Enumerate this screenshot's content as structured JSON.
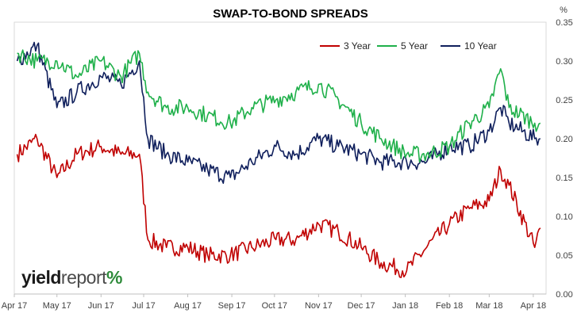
{
  "chart_data": {
    "type": "line",
    "title": "SWAP-TO-BOND SPREADS",
    "y_unit": "%",
    "ylim": [
      0,
      0.35
    ],
    "y_ticks": [
      "0.00",
      "0.05",
      "0.10",
      "0.15",
      "0.20",
      "0.25",
      "0.30",
      "0.35"
    ],
    "x_ticks": [
      "Apr 17",
      "May 17",
      "Jun 17",
      "Jul 17",
      "Aug 17",
      "Sep 17",
      "Oct 17",
      "Nov 17",
      "Dec 17",
      "Jan 18",
      "Feb 18",
      "Mar 18",
      "Apr 18"
    ],
    "legend_position": "top-right",
    "x": [
      "2017-04-03",
      "2017-04-17",
      "2017-05-01",
      "2017-05-15",
      "2017-06-01",
      "2017-06-15",
      "2017-06-28",
      "2017-07-04",
      "2017-07-17",
      "2017-08-01",
      "2017-08-15",
      "2017-08-31",
      "2017-09-15",
      "2017-10-02",
      "2017-10-16",
      "2017-11-01",
      "2017-11-15",
      "2017-12-01",
      "2017-12-15",
      "2018-01-02",
      "2018-01-16",
      "2018-02-01",
      "2018-02-15",
      "2018-03-01",
      "2018-03-09",
      "2018-03-15",
      "2018-04-02",
      "2018-04-06"
    ],
    "series": [
      {
        "name": "3 Year",
        "color": "#c00000",
        "values": [
          0.18,
          0.2,
          0.15,
          0.18,
          0.19,
          0.18,
          0.18,
          0.07,
          0.06,
          0.06,
          0.05,
          0.05,
          0.06,
          0.07,
          0.07,
          0.09,
          0.08,
          0.06,
          0.04,
          0.03,
          0.06,
          0.09,
          0.11,
          0.12,
          0.16,
          0.14,
          0.06,
          0.085
        ]
      },
      {
        "name": "5 Year",
        "color": "#1fb04a",
        "values": [
          0.31,
          0.3,
          0.3,
          0.28,
          0.3,
          0.28,
          0.31,
          0.26,
          0.24,
          0.24,
          0.23,
          0.22,
          0.24,
          0.25,
          0.26,
          0.27,
          0.25,
          0.22,
          0.2,
          0.18,
          0.18,
          0.19,
          0.22,
          0.24,
          0.29,
          0.24,
          0.22,
          0.22
        ]
      },
      {
        "name": "10 Year",
        "color": "#0f1f5c",
        "values": [
          0.3,
          0.32,
          0.24,
          0.26,
          0.28,
          0.27,
          0.3,
          0.2,
          0.18,
          0.17,
          0.16,
          0.15,
          0.17,
          0.19,
          0.18,
          0.2,
          0.19,
          0.18,
          0.17,
          0.17,
          0.17,
          0.19,
          0.19,
          0.21,
          0.24,
          0.22,
          0.2,
          0.2
        ]
      }
    ]
  },
  "brand": {
    "part1": "yield",
    "part2": "report",
    "part3": "%"
  }
}
